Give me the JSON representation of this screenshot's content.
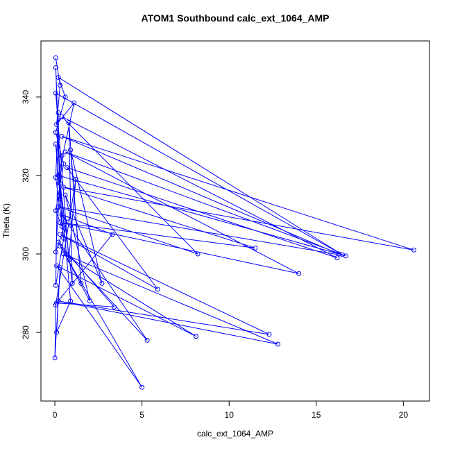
{
  "chart_data": {
    "type": "line",
    "title": "ATOM1 Southbound calc_ext_1064_AMP",
    "x_label": "calc_ext_1064_AMP",
    "y_label": "Theta (K)",
    "xlim": [
      -0.8,
      21.5
    ],
    "ylim": [
      262.5,
      354.3
    ],
    "xticks": [
      0,
      5,
      10,
      15,
      20
    ],
    "yticks": [
      280,
      300,
      320,
      340
    ],
    "markers": true,
    "x": [
      0.05,
      0.3,
      0.1,
      1.1,
      0.2,
      16.3,
      0.4,
      20.6,
      0.5,
      11.5,
      0.3,
      14,
      0.6,
      16.7,
      0.2,
      8.2,
      0.4,
      16.2,
      0.7,
      5.9,
      0.3,
      12.3,
      0.2,
      12.8,
      0.5,
      8.1,
      0.1,
      5,
      0.3,
      5.3,
      0.4,
      3.3,
      0.1,
      3.4,
      0.2,
      2,
      0.6,
      2.7,
      0.9,
      1.5,
      0.8,
      1,
      0.3,
      0.9,
      0.1,
      0.3,
      0,
      0.05,
      1.2,
      0.8,
      0.05,
      16.5,
      0.2,
      0.6,
      0.05,
      0.5,
      0.05,
      0.4,
      0.05,
      0.3,
      0.05,
      0.5,
      0.05,
      0.2,
      0.05,
      0.7,
      0.05,
      0.4
    ],
    "series": [
      {
        "color": "#0000ff",
        "values": [
          350,
          343,
          333,
          338.5,
          320,
          300,
          330,
          301,
          317,
          301.5,
          308,
          295,
          326,
          299.5,
          312,
          300,
          335,
          299,
          322,
          291,
          305,
          279.5,
          288,
          277,
          300,
          279,
          297,
          266,
          302,
          278,
          310,
          305,
          287.5,
          286.5,
          303,
          288,
          315,
          292.5,
          326.5,
          292.5,
          333.5,
          292.5,
          318,
          288,
          280,
          296.5,
          273.5,
          287,
          319,
          298.5,
          341,
          299.8,
          345,
          340,
          331,
          323,
          311,
          307,
          347.5,
          314,
          328,
          304,
          319.5,
          336,
          292,
          309,
          300.5,
          325
        ]
      }
    ]
  }
}
